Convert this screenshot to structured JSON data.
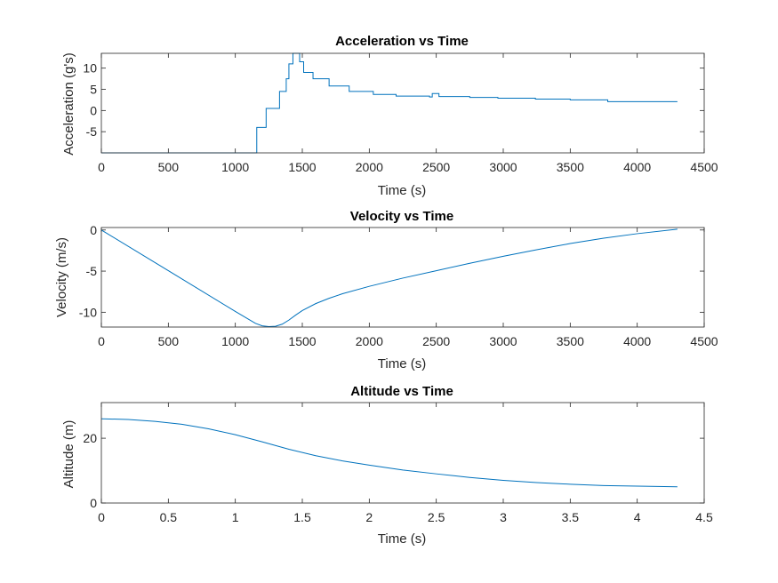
{
  "chart_data": [
    {
      "type": "line",
      "title": "Acceleration vs Time",
      "xlabel": "Time (s)",
      "ylabel": "Acceleration (g's)",
      "xlim": [
        0,
        4500
      ],
      "ylim": [
        -10,
        13.5
      ],
      "xticks": [
        0,
        500,
        1000,
        1500,
        2000,
        2500,
        3000,
        3500,
        4000,
        4500
      ],
      "xtick_labels": [
        "0",
        "500",
        "1000",
        "1500",
        "2000",
        "2500",
        "3000",
        "3500",
        "4000",
        "4500"
      ],
      "yticks": [
        -5,
        0,
        5,
        10
      ],
      "ytick_labels": [
        "-5",
        "0",
        "5",
        "10"
      ],
      "grid": false,
      "color": "#0072BD",
      "series": [
        {
          "style": "step",
          "x": [
            0,
            1150,
            1160,
            1210,
            1230,
            1300,
            1330,
            1380,
            1400,
            1430,
            1450,
            1480,
            1510,
            1580,
            1700,
            1850,
            2030,
            2200,
            2450,
            2470,
            2520,
            2750,
            2960,
            3240,
            3500,
            3780,
            4300
          ],
          "y": [
            -10,
            -10,
            -4,
            -4,
            0.5,
            0.5,
            4.5,
            7.5,
            11,
            13.5,
            13.5,
            11.5,
            9,
            7.5,
            5.8,
            4.5,
            3.8,
            3.4,
            3.2,
            4,
            3.3,
            3.1,
            2.9,
            2.7,
            2.5,
            2.1,
            2.1
          ]
        }
      ]
    },
    {
      "type": "line",
      "title": "Velocity vs Time",
      "xlabel": "Time (s)",
      "ylabel": "Velocity (m/s)",
      "xlim": [
        0,
        4500
      ],
      "ylim": [
        -11.8,
        0.3
      ],
      "xticks": [
        0,
        500,
        1000,
        1500,
        2000,
        2500,
        3000,
        3500,
        4000,
        4500
      ],
      "xtick_labels": [
        "0",
        "500",
        "1000",
        "1500",
        "2000",
        "2500",
        "3000",
        "3500",
        "4000",
        "4500"
      ],
      "yticks": [
        -10,
        -5,
        0
      ],
      "ytick_labels": [
        "-10",
        "-5",
        "0"
      ],
      "grid": false,
      "color": "#0072BD",
      "series": [
        {
          "style": "line",
          "x": [
            0,
            500,
            1000,
            1150,
            1200,
            1250,
            1300,
            1350,
            1400,
            1450,
            1500,
            1600,
            1700,
            1800,
            2000,
            2250,
            2500,
            2750,
            3000,
            3250,
            3500,
            3750,
            4000,
            4300
          ],
          "y": [
            0,
            -4.95,
            -9.9,
            -11.35,
            -11.65,
            -11.75,
            -11.7,
            -11.45,
            -10.95,
            -10.35,
            -9.8,
            -8.95,
            -8.3,
            -7.75,
            -6.85,
            -5.85,
            -4.95,
            -4.05,
            -3.2,
            -2.4,
            -1.65,
            -1,
            -0.45,
            0.1
          ]
        }
      ]
    },
    {
      "type": "line",
      "title": "Altitude vs Time",
      "xlabel": "Time (s)",
      "ylabel": "Altitude (m)",
      "xlim": [
        0,
        4.5
      ],
      "ylim": [
        0,
        31
      ],
      "xticks": [
        0,
        0.5,
        1,
        1.5,
        2,
        2.5,
        3,
        3.5,
        4,
        4.5
      ],
      "xtick_labels": [
        "0",
        "0.5",
        "1",
        "1.5",
        "2",
        "2.5",
        "3",
        "3.5",
        "4",
        "4.5"
      ],
      "yticks": [
        0,
        20
      ],
      "ytick_labels": [
        "0",
        "20"
      ],
      "grid": false,
      "color": "#0072BD",
      "series": [
        {
          "style": "line",
          "x": [
            0,
            0.2,
            0.4,
            0.6,
            0.8,
            1.0,
            1.2,
            1.4,
            1.6,
            1.8,
            2.0,
            2.25,
            2.5,
            2.75,
            3.0,
            3.25,
            3.5,
            3.75,
            4.0,
            4.3
          ],
          "y": [
            26,
            25.8,
            25.2,
            24.3,
            22.9,
            21.1,
            18.9,
            16.6,
            14.6,
            13.0,
            11.7,
            10.2,
            9.0,
            7.9,
            7.0,
            6.3,
            5.8,
            5.4,
            5.2,
            5.0
          ]
        }
      ]
    }
  ]
}
